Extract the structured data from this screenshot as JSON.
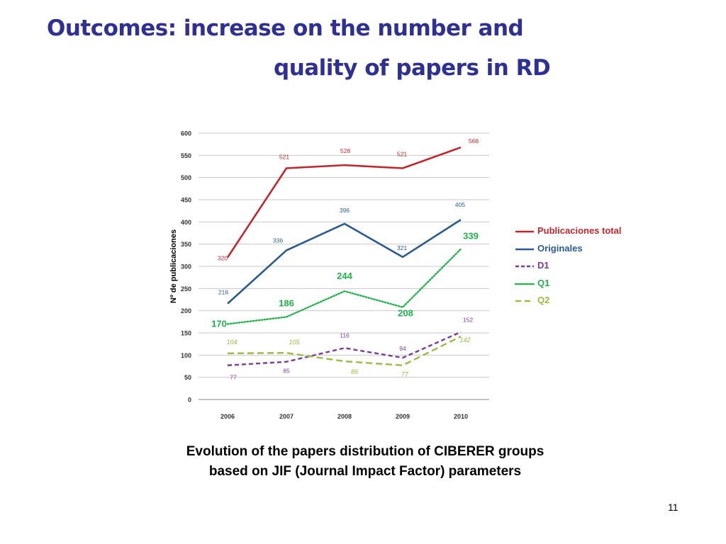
{
  "slide": {
    "title_line1": "Outcomes: increase on the number and",
    "title_line2": "quality of papers in RD",
    "caption": "Evolution of the papers distribution of CIBERER groups based on JIF (Journal Impact Factor) parameters",
    "page_number": "11",
    "title_color": "#2e3192"
  },
  "chart_data": {
    "type": "line",
    "categories": [
      "2006",
      "2007",
      "2008",
      "2009",
      "2010"
    ],
    "ylabel": "Nº de publicaciones",
    "ylim": [
      0,
      600
    ],
    "yticks": [
      0,
      50,
      100,
      150,
      200,
      250,
      300,
      350,
      400,
      450,
      500,
      550,
      600
    ],
    "grid": true,
    "legend_position": "right",
    "series": [
      {
        "name": "Publicaciones total",
        "values": [
          320,
          521,
          528,
          521,
          568
        ],
        "color": "#c0272d",
        "style": "solid",
        "label_style": "small"
      },
      {
        "name": "Originales",
        "values": [
          216,
          336,
          396,
          321,
          405
        ],
        "color": "#2a5b8c",
        "style": "solid",
        "label_style": "small"
      },
      {
        "name": "D1",
        "values": [
          77,
          85,
          116,
          94,
          152
        ],
        "color": "#7a3c9a",
        "style": "dashed",
        "label_style": "small"
      },
      {
        "name": "Q1",
        "values": [
          170,
          186,
          244,
          208,
          339
        ],
        "color": "#22b14c",
        "style": "dotted",
        "label_style": "large"
      },
      {
        "name": "Q2",
        "values": [
          104,
          105,
          86,
          77,
          142
        ],
        "color": "#99bb44",
        "style": "longdash",
        "label_style": "italic"
      }
    ]
  }
}
